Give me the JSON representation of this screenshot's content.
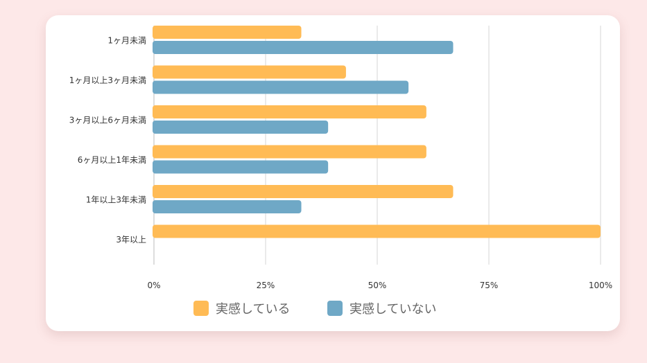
{
  "chart_data": {
    "type": "bar",
    "orientation": "horizontal",
    "categories": [
      "1ヶ月未満",
      "1ヶ月以上3ヶ月未満",
      "3ヶ月以上6ヶ月未満",
      "6ヶ月以上1年未満",
      "1年以上3年未満",
      "3年以上"
    ],
    "series": [
      {
        "name": "実感している",
        "values": [
          33,
          43,
          61,
          61,
          67,
          100
        ],
        "color": "#ffbb55"
      },
      {
        "name": "実感していない",
        "values": [
          67,
          57,
          39,
          39,
          33,
          0
        ],
        "color": "#6fa8c6"
      }
    ],
    "x_ticks": [
      "0%",
      "25%",
      "50%",
      "75%",
      "100%"
    ],
    "xlim": [
      0,
      100
    ],
    "grid": true,
    "legend_position": "bottom"
  }
}
